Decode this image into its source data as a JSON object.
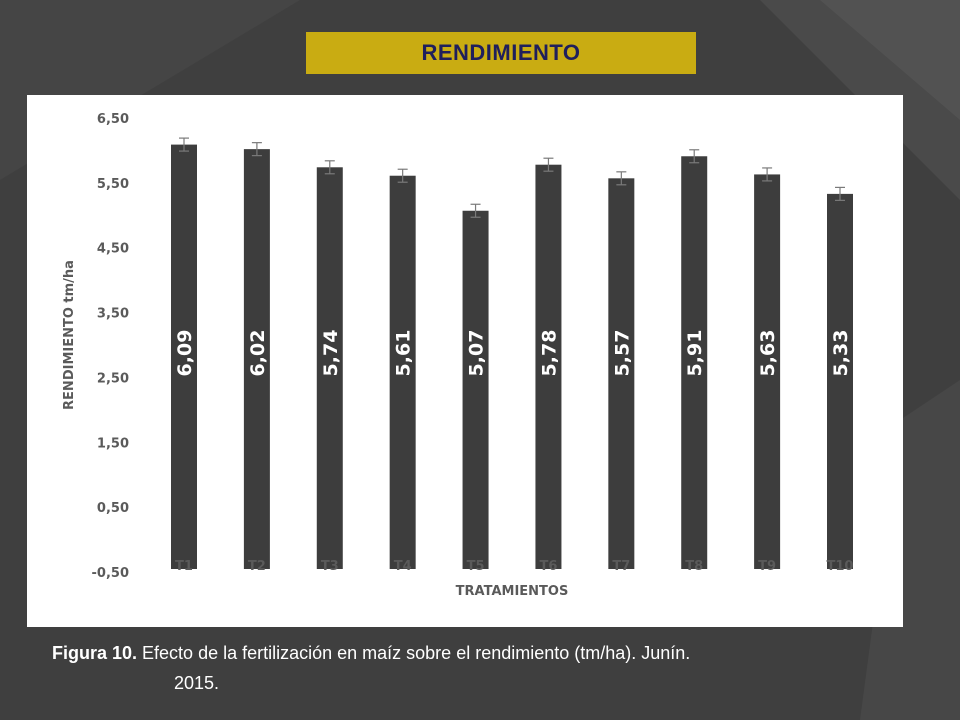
{
  "banner": {
    "title": "RENDIMIENTO"
  },
  "colors": {
    "background": "#3f3f3f",
    "banner": "#c9ac12",
    "banner_text": "#1f1f5c",
    "bar": "#3d3d3d",
    "panel": "#ffffff"
  },
  "caption": {
    "label": "Figura 10.",
    "text_line1": " Efecto de la fertilización en maíz sobre el rendimiento (tm/ha). Junín.",
    "text_line2": "2015."
  },
  "chart_data": {
    "type": "bar",
    "title": "",
    "xlabel": "TRATAMIENTOS",
    "ylabel": "RENDIMIENTO tm/ha",
    "categories": [
      "T1",
      "T2",
      "T3",
      "T4",
      "T5",
      "T6",
      "T7",
      "T8",
      "T9",
      "T10"
    ],
    "values": [
      6.09,
      6.02,
      5.74,
      5.61,
      5.07,
      5.78,
      5.57,
      5.91,
      5.63,
      5.33
    ],
    "value_labels": [
      "6,09",
      "6,02",
      "5,74",
      "5,61",
      "5,07",
      "5,78",
      "5,57",
      "5,91",
      "5,63",
      "5,33"
    ],
    "error": [
      0.1,
      0.1,
      0.1,
      0.1,
      0.1,
      0.1,
      0.1,
      0.1,
      0.1,
      0.1
    ],
    "ylim": [
      -0.5,
      6.5
    ],
    "yticks": [
      -0.5,
      0.5,
      1.5,
      2.5,
      3.5,
      4.5,
      5.5,
      6.5
    ],
    "ytick_labels": [
      "-0,50",
      "0,50",
      "1,50",
      "2,50",
      "3,50",
      "4,50",
      "5,50",
      "6,50"
    ],
    "grid": false,
    "legend": "none",
    "error_bars": true
  }
}
